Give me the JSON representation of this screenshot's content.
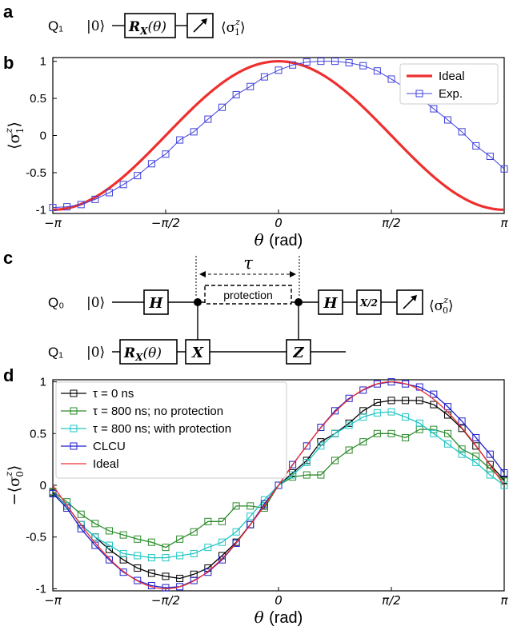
{
  "panels": {
    "a": "a",
    "b": "b",
    "c": "c",
    "d": "d"
  },
  "circuit_a": {
    "qubit": "Q₁",
    "ket": "|0⟩",
    "gate_main": "R",
    "gate_sub": "X",
    "gate_arg": "(θ)",
    "readout_main": "⟨σ",
    "readout_sup": "z",
    "readout_sub": "1",
    "readout_close": "⟩"
  },
  "circuit_c": {
    "q0": "Q₀",
    "q1": "Q₁",
    "ket0": "|0⟩",
    "ket1": "|0⟩",
    "h1": "H",
    "h2": "H",
    "x2": "X/2",
    "rx_main": "R",
    "rx_sub": "X",
    "rx_arg": "(θ)",
    "x": "X",
    "z": "Z",
    "tau": "τ",
    "protection": "protection",
    "readout_main": "⟨σ",
    "readout_sup": "z",
    "readout_sub": "0",
    "readout_close": "⟩"
  },
  "chart_data": [
    {
      "type": "line",
      "panel": "b",
      "xlabel_sym": "θ",
      "xlabel_unit": "(rad)",
      "ylabel_main": "⟨σ",
      "ylabel_sup": "z",
      "ylabel_sub": "1",
      "ylabel_close": "⟩",
      "xlim": [
        -3.1416,
        3.1416
      ],
      "ylim": [
        -1.05,
        1.05
      ],
      "xticks": [
        "−π",
        "−π/2",
        "0",
        "π/2",
        "π"
      ],
      "yticks": [
        "1",
        "0.5",
        "0",
        "-0.5",
        "-1"
      ],
      "ytick_values": [
        1,
        0.5,
        0,
        -0.5,
        -1
      ],
      "grid": false,
      "legend_position": "top-right",
      "series": [
        {
          "name": "Ideal",
          "kind": "cos",
          "color": "#ee3030"
        },
        {
          "name": "Exp.",
          "kind": "markers",
          "color": "#4040dd",
          "x_min": -3.1416,
          "x_max": 3.1416,
          "n": 33,
          "values": [
            -0.97,
            -0.96,
            -0.93,
            -0.86,
            -0.77,
            -0.66,
            -0.54,
            -0.38,
            -0.25,
            -0.06,
            0.05,
            0.22,
            0.38,
            0.55,
            0.66,
            0.79,
            0.88,
            0.95,
            0.99,
            1.0,
            1.0,
            0.98,
            0.94,
            0.87,
            0.76,
            0.64,
            0.51,
            0.36,
            0.21,
            0.05,
            -0.14,
            -0.28,
            -0.45
          ]
        }
      ]
    },
    {
      "type": "line",
      "panel": "d",
      "xlabel_sym": "θ",
      "xlabel_unit": "(rad)",
      "ylabel_main": "−⟨σ",
      "ylabel_sup": "z",
      "ylabel_sub": "0",
      "ylabel_close": "⟩",
      "xlim": [
        -3.1416,
        3.1416
      ],
      "ylim": [
        -1.02,
        1.02
      ],
      "xticks": [
        "−π",
        "−π/2",
        "0",
        "π/2",
        "π"
      ],
      "yticks": [
        "1",
        "0.5",
        "0",
        "-0.5",
        "-1"
      ],
      "ytick_values": [
        1,
        0.5,
        0,
        -0.5,
        -1
      ],
      "grid": false,
      "legend_position": "top-left",
      "series": [
        {
          "name": "τ = 0 ns",
          "color": "#000000",
          "marker": true,
          "x_min": -3.1416,
          "x_max": 3.1416,
          "n": 33,
          "values": [
            -0.07,
            -0.2,
            -0.38,
            -0.5,
            -0.62,
            -0.72,
            -0.8,
            -0.85,
            -0.88,
            -0.9,
            -0.86,
            -0.8,
            -0.68,
            -0.55,
            -0.38,
            -0.2,
            0.0,
            0.12,
            0.24,
            0.42,
            0.5,
            0.6,
            0.72,
            0.8,
            0.82,
            0.82,
            0.82,
            0.78,
            0.68,
            0.55,
            0.38,
            0.2,
            0.05
          ]
        },
        {
          "name": "τ = 800 ns; no protection",
          "color": "#2b8a2b",
          "marker": true,
          "x_min": -3.1416,
          "x_max": 3.1416,
          "n": 33,
          "values": [
            -0.06,
            -0.16,
            -0.28,
            -0.37,
            -0.44,
            -0.48,
            -0.52,
            -0.55,
            -0.6,
            -0.52,
            -0.45,
            -0.35,
            -0.35,
            -0.2,
            -0.2,
            -0.22,
            0.0,
            0.08,
            0.1,
            0.1,
            0.24,
            0.34,
            0.42,
            0.5,
            0.5,
            0.46,
            0.54,
            0.54,
            0.5,
            0.35,
            0.28,
            0.16,
            0.04
          ]
        },
        {
          "name": "τ = 800 ns; with protection",
          "color": "#22c4c4",
          "marker": true,
          "x_min": -3.1416,
          "x_max": 3.1416,
          "n": 33,
          "values": [
            -0.08,
            -0.2,
            -0.38,
            -0.5,
            -0.58,
            -0.66,
            -0.68,
            -0.7,
            -0.7,
            -0.68,
            -0.66,
            -0.6,
            -0.55,
            -0.45,
            -0.3,
            -0.14,
            0.0,
            0.1,
            0.22,
            0.38,
            0.5,
            0.58,
            0.66,
            0.7,
            0.71,
            0.66,
            0.6,
            0.5,
            0.4,
            0.3,
            0.22,
            0.1,
            0.0
          ]
        },
        {
          "name": "CLCU",
          "color": "#2020cc",
          "marker": true,
          "x_min": -3.1416,
          "x_max": 3.1416,
          "n": 33,
          "values": [
            -0.08,
            -0.22,
            -0.42,
            -0.58,
            -0.72,
            -0.84,
            -0.92,
            -0.97,
            -0.99,
            -0.98,
            -0.92,
            -0.84,
            -0.72,
            -0.56,
            -0.38,
            -0.18,
            0.0,
            0.2,
            0.38,
            0.56,
            0.72,
            0.84,
            0.92,
            0.98,
            1.0,
            0.98,
            0.95,
            0.88,
            0.76,
            0.62,
            0.46,
            0.3,
            0.12
          ]
        },
        {
          "name": "Ideal",
          "color": "#ee3030",
          "marker": false,
          "kind": "sin"
        }
      ]
    }
  ]
}
